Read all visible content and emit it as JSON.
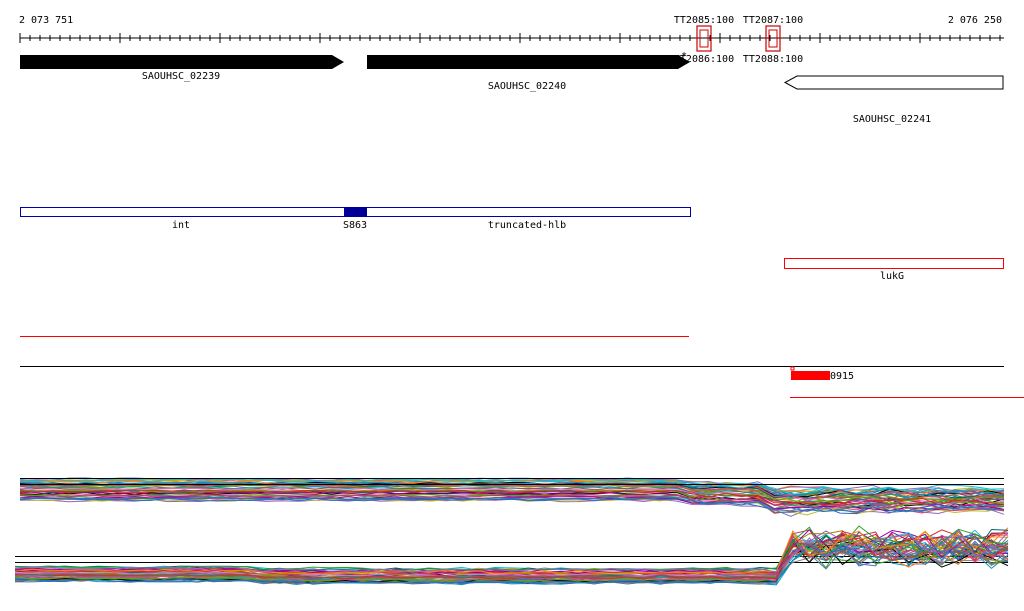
{
  "ruler": {
    "start": "2 073 751",
    "end": "2 076 250"
  },
  "terminators": [
    {
      "label_top": "TT2085:100",
      "label_bottom": "TT2086:100"
    },
    {
      "label_top": "TT2087:100",
      "label_bottom": "TT2088:100"
    }
  ],
  "genes": [
    {
      "label": "SAOUHSC_02239",
      "strand": "+",
      "style": "filled"
    },
    {
      "label": "SAOUHSC_02240",
      "strand": "+",
      "style": "filled"
    },
    {
      "label": "SAOUHSC_02241",
      "strand": "-",
      "style": "outline"
    }
  ],
  "annotations": [
    {
      "label": "int"
    },
    {
      "label": "S863"
    },
    {
      "label": "truncated-hlb"
    },
    {
      "label": "lukG"
    }
  ],
  "small_rna": {
    "label": "0915"
  },
  "colors": {
    "gene_filled": "#000000",
    "region_outline": "#0000aa",
    "region_fill": "#000099",
    "red": "#ff0000",
    "terminator": "#cc0000"
  }
}
